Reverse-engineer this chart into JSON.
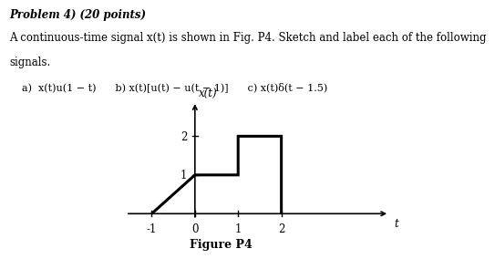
{
  "title_line1": "Problem 4) (20 points)",
  "desc_line1": "A continuous-time signal x(t) is shown in Fig. P4. Sketch and label each of the following",
  "desc_line2": "signals.",
  "part_a": "a)  x(t)u(1 − t)",
  "part_b": "b) x(t)[u(t) − u(t − 1)]",
  "part_c": "c) x(t)δ(t − 1.5)",
  "signal_x": [
    -1,
    0,
    0,
    1,
    1,
    2,
    2
  ],
  "signal_y": [
    0,
    1,
    1,
    1,
    2,
    2,
    0
  ],
  "xlabel": "t",
  "ylabel": "x(t)",
  "xticks": [
    -1,
    0,
    1,
    2
  ],
  "yticks": [
    1,
    2
  ],
  "xlim": [
    -1.7,
    4.5
  ],
  "ylim": [
    -0.35,
    2.9
  ],
  "figure_caption": "Figure P4",
  "line_color": "#000000",
  "line_width": 2.2,
  "background_color": "#ffffff",
  "font_size_title": 8.5,
  "font_size_text": 8.5,
  "font_size_axis": 8.5,
  "font_size_caption": 9
}
